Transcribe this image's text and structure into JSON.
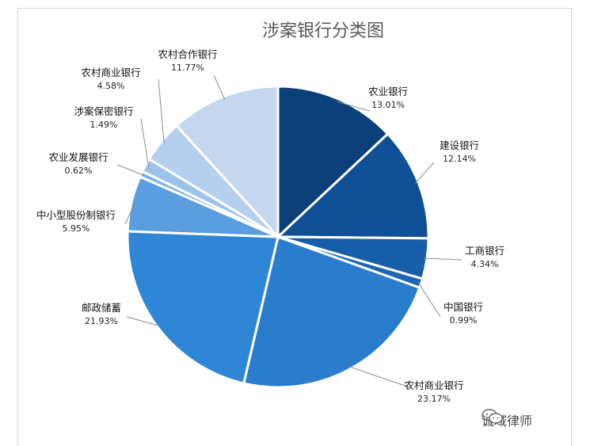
{
  "chart_data": {
    "type": "pie",
    "title": "涉案银行分类图",
    "slices": [
      {
        "label": "农业银行",
        "percent": "13.01%",
        "value": 13.01,
        "color": "#0b3f7a"
      },
      {
        "label": "建设银行",
        "percent": "12.14%",
        "value": 12.14,
        "color": "#0f4f96"
      },
      {
        "label": "工商银行",
        "percent": "4.34%",
        "value": 4.34,
        "color": "#165ea9"
      },
      {
        "label": "中国银行",
        "percent": "0.99%",
        "value": 0.99,
        "color": "#1a66b5"
      },
      {
        "label": "农村商业银行",
        "percent": "23.17%",
        "value": 23.17,
        "color": "#2a7ccc"
      },
      {
        "label": "邮政储蓄",
        "percent": "21.93%",
        "value": 21.93,
        "color": "#2f86d6"
      },
      {
        "label": "中小型股份制银行",
        "percent": "5.95%",
        "value": 5.95,
        "color": "#5a9ee0"
      },
      {
        "label": "农业发展银行",
        "percent": "0.62%",
        "value": 0.62,
        "color": "#7fb2e4"
      },
      {
        "label": "涉案保密银行",
        "percent": "1.49%",
        "value": 1.49,
        "color": "#9dc3ea"
      },
      {
        "label": "农村商业银行",
        "percent": "4.58%",
        "value": 4.58,
        "color": "#b5d0ee"
      },
      {
        "label": "农村合作银行",
        "percent": "11.77%",
        "value": 11.77,
        "color": "#c5d7ee"
      }
    ]
  },
  "watermark": {
    "text": "诚域律师",
    "icon": "wechat-icon"
  }
}
